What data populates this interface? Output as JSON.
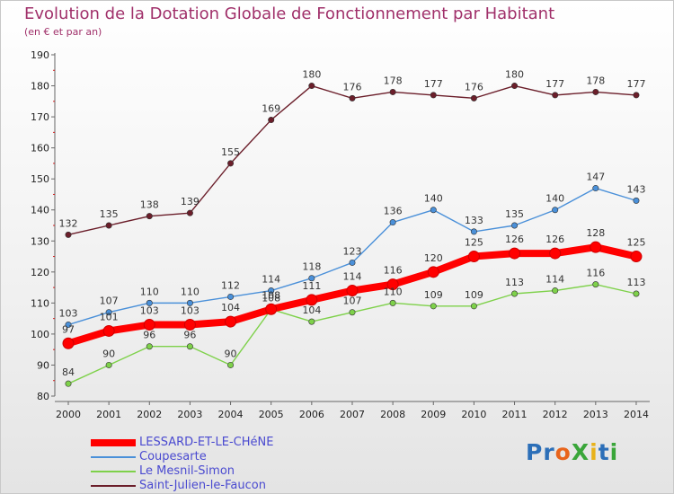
{
  "title": "Evolution de la Dotation Globale de Fonctionnement par Habitant",
  "subtitle": "(en € et par an)",
  "logo": "ProXiti",
  "colors": {
    "title": "#a0306a",
    "legend_text": "#4a4ad0"
  },
  "chart_data": {
    "type": "line",
    "title": "Evolution de la Dotation Globale de Fonctionnement par Habitant",
    "subtitle": "(en € et par an)",
    "xlabel": "",
    "ylabel": "",
    "ylim": [
      80,
      190
    ],
    "yticks": [
      80,
      90,
      100,
      110,
      120,
      130,
      140,
      150,
      160,
      170,
      180,
      190
    ],
    "grid": false,
    "legend_position": "bottom-left",
    "categories": [
      "2000",
      "2001",
      "2002",
      "2003",
      "2004",
      "2005",
      "2006",
      "2007",
      "2008",
      "2009",
      "2010",
      "2011",
      "2012",
      "2013",
      "2014"
    ],
    "series": [
      {
        "name": "LESSARD-ET-LE-CHéNE",
        "color": "#ff0000",
        "emphasis": true,
        "values": [
          97,
          101,
          103,
          103,
          104,
          108,
          111,
          114,
          116,
          120,
          125,
          126,
          126,
          128,
          125
        ]
      },
      {
        "name": "Coupesarte",
        "color": "#4a90d9",
        "emphasis": false,
        "values": [
          103,
          107,
          110,
          110,
          112,
          114,
          118,
          123,
          136,
          140,
          133,
          135,
          140,
          147,
          143
        ]
      },
      {
        "name": "Le Mesnil-Simon",
        "color": "#7ed14a",
        "emphasis": false,
        "values": [
          84,
          90,
          96,
          96,
          90,
          108,
          104,
          107,
          110,
          109,
          109,
          113,
          114,
          116,
          113
        ]
      },
      {
        "name": "Saint-Julien-le-Faucon",
        "color": "#6b1e2a",
        "emphasis": false,
        "values": [
          132,
          135,
          138,
          139,
          155,
          169,
          180,
          176,
          178,
          177,
          176,
          180,
          177,
          178,
          177
        ]
      }
    ]
  }
}
